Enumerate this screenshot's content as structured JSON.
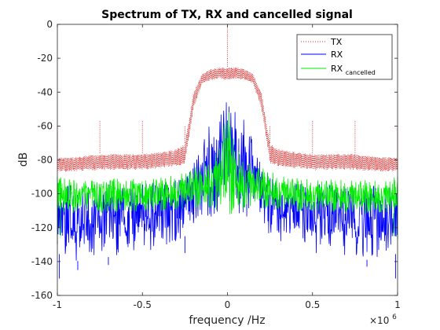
{
  "chart_data": {
    "type": "line",
    "title": "Spectrum of TX, RX and cancelled signal",
    "xlabel": "frequency /Hz",
    "ylabel": "dB",
    "x_exponent_label": "×10",
    "x_exponent_power": "6",
    "xlim": [
      -1,
      1
    ],
    "ylim": [
      -160,
      0
    ],
    "x_scale": 1000000,
    "x_ticks": [
      -1,
      -0.5,
      0,
      0.5,
      1
    ],
    "x_tick_labels": [
      "-1",
      "-0.5",
      "0",
      "0.5",
      "1"
    ],
    "y_ticks": [
      -160,
      -140,
      -120,
      -100,
      -80,
      -60,
      -40,
      -20,
      0
    ],
    "y_tick_labels": [
      "-160",
      "-140",
      "-120",
      "-100",
      "-80",
      "-60",
      "-40",
      "-20",
      "0"
    ],
    "grid": false,
    "legend_position": "top-right",
    "series": [
      {
        "name": "TX",
        "color": "#d62728",
        "line_style": "dotted",
        "x": [
          -1.0,
          -0.9,
          -0.75,
          -0.6,
          -0.5,
          -0.4,
          -0.3,
          -0.25,
          -0.2,
          -0.15,
          -0.1,
          -0.05,
          0.0,
          0.05,
          0.1,
          0.15,
          0.2,
          0.25,
          0.3,
          0.4,
          0.5,
          0.6,
          0.75,
          0.9,
          1.0
        ],
        "y_upper": [
          -78,
          -78,
          -76,
          -76,
          -76,
          -75,
          -73,
          -70,
          -40,
          -29,
          -26,
          -25,
          -25,
          -25,
          -26,
          -29,
          -40,
          -70,
          -73,
          -75,
          -76,
          -76,
          -76,
          -78,
          -78
        ],
        "y_lower": [
          -87,
          -87,
          -86,
          -86,
          -86,
          -85,
          -84,
          -82,
          -50,
          -35,
          -33,
          -32,
          -33,
          -32,
          -33,
          -35,
          -50,
          -82,
          -84,
          -85,
          -86,
          -86,
          -86,
          -87,
          -87
        ],
        "spikes": [
          {
            "x": -1.0,
            "y": -60
          },
          {
            "x": -0.75,
            "y": -57
          },
          {
            "x": -0.5,
            "y": -57
          },
          {
            "x": -0.25,
            "y": -60
          },
          {
            "x": 0.0,
            "y": 0
          },
          {
            "x": 0.25,
            "y": -60
          },
          {
            "x": 0.5,
            "y": -57
          },
          {
            "x": 0.75,
            "y": -57
          },
          {
            "x": 1.0,
            "y": -60
          }
        ]
      },
      {
        "name": "RX",
        "color": "#0000ff",
        "line_style": "solid",
        "x": [
          -1.0,
          -0.9,
          -0.75,
          -0.6,
          -0.5,
          -0.4,
          -0.3,
          -0.25,
          -0.2,
          -0.15,
          -0.1,
          -0.05,
          0.0,
          0.05,
          0.1,
          0.15,
          0.2,
          0.25,
          0.3,
          0.4,
          0.5,
          0.6,
          0.75,
          0.9,
          1.0
        ],
        "y_upper": [
          -95,
          -95,
          -95,
          -94,
          -94,
          -93,
          -92,
          -90,
          -82,
          -65,
          -55,
          -52,
          -45,
          -52,
          -55,
          -65,
          -82,
          -90,
          -92,
          -93,
          -94,
          -94,
          -95,
          -95,
          -95
        ],
        "y_lower": [
          -135,
          -140,
          -138,
          -136,
          -135,
          -132,
          -128,
          -125,
          -118,
          -115,
          -114,
          -113,
          -112,
          -113,
          -114,
          -115,
          -118,
          -125,
          -128,
          -132,
          -135,
          -136,
          -138,
          -140,
          -135
        ],
        "spikes": [
          {
            "x": -0.988,
            "y": -150
          },
          {
            "x": -0.88,
            "y": -145
          },
          {
            "x": -0.7,
            "y": -142
          },
          {
            "x": -0.25,
            "y": -135
          },
          {
            "x": 0.82,
            "y": -143
          },
          {
            "x": 0.988,
            "y": -150
          }
        ]
      },
      {
        "name": "RX",
        "name_subscript": "cancelled",
        "color": "#00ee00",
        "line_style": "solid",
        "x": [
          -1.0,
          -0.9,
          -0.75,
          -0.6,
          -0.5,
          -0.4,
          -0.3,
          -0.25,
          -0.2,
          -0.15,
          -0.1,
          -0.05,
          0.0,
          0.05,
          0.1,
          0.15,
          0.2,
          0.25,
          0.3,
          0.4,
          0.5,
          0.6,
          0.75,
          0.9,
          1.0
        ],
        "y_upper": [
          -90,
          -92,
          -91,
          -91,
          -91,
          -90,
          -88,
          -86,
          -84,
          -82,
          -78,
          -72,
          -45,
          -72,
          -78,
          -82,
          -84,
          -86,
          -88,
          -90,
          -91,
          -91,
          -91,
          -92,
          -90
        ],
        "y_lower": [
          -112,
          -112,
          -112,
          -111,
          -111,
          -111,
          -110,
          -110,
          -109,
          -108,
          -110,
          -112,
          -115,
          -112,
          -110,
          -108,
          -109,
          -110,
          -110,
          -111,
          -111,
          -111,
          -112,
          -112,
          -112
        ],
        "spikes": [
          {
            "x": -1.0,
            "y": -128
          },
          {
            "x": -0.98,
            "y": -125
          },
          {
            "x": 0.98,
            "y": -125
          },
          {
            "x": 1.0,
            "y": -127
          }
        ]
      }
    ]
  }
}
